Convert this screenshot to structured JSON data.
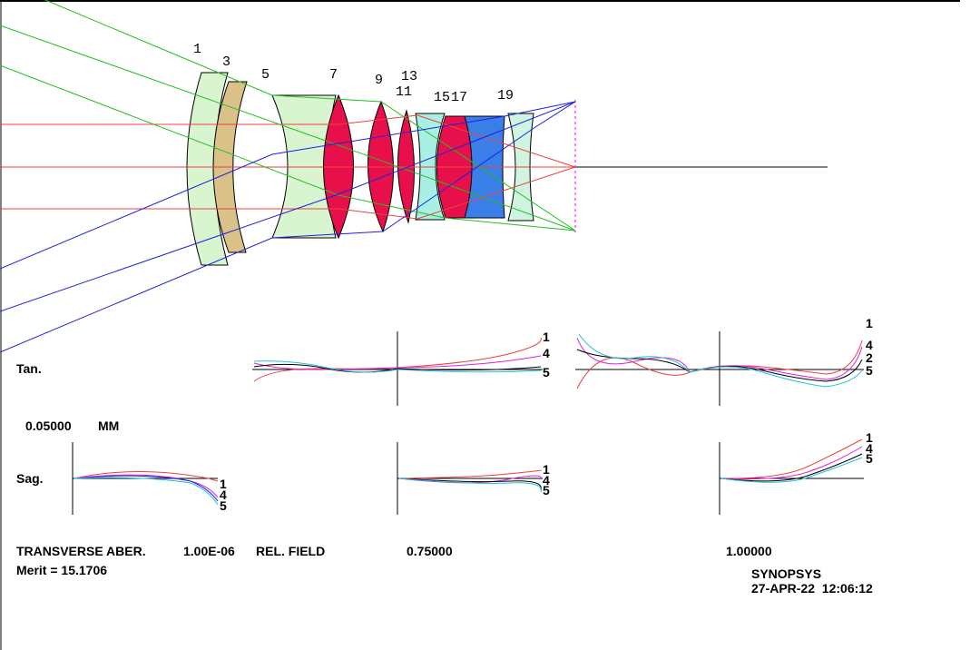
{
  "surfaces": [
    "1",
    "3",
    "5",
    "7",
    "9",
    "11",
    "13",
    "15",
    "17",
    "19"
  ],
  "plot_labels": {
    "tan": "Tan.",
    "sag": "Sag.",
    "scale": "0.05000",
    "unit": "MM"
  },
  "curve_labels": {
    "tan_2": [
      "1",
      "4",
      "5"
    ],
    "tan_3": [
      "1",
      "4",
      "2",
      "5"
    ],
    "sag_1": [
      "1",
      "4",
      "5"
    ],
    "sag_2": [
      "1",
      "4",
      "5"
    ],
    "sag_3": [
      "1",
      "4",
      "5"
    ]
  },
  "footer": {
    "transverse": "TRANSVERSE ABER.",
    "wavelength": "1.00E-06",
    "rel_field": "REL. FIELD",
    "field_2": "0.75000",
    "field_3": "1.00000",
    "merit": "Merit = 15.1706",
    "program": "SYNOPSYS",
    "timestamp": "27-APR-22  12:06:12"
  }
}
